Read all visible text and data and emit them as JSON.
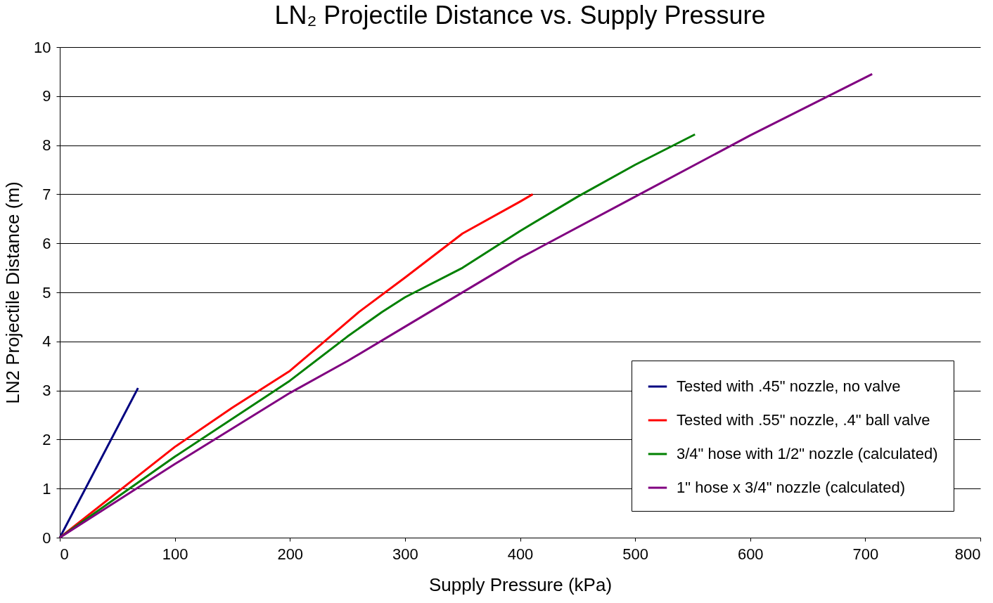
{
  "chart_data": {
    "type": "line",
    "title": "LN₂ Projectile Distance vs. Supply Pressure",
    "xlabel": "Supply Pressure (kPa)",
    "ylabel": "LN2 Projectile Distance (m)",
    "xlim": [
      0,
      800
    ],
    "xticks": [
      0,
      100,
      200,
      300,
      400,
      500,
      600,
      700,
      800
    ],
    "ylim": [
      0,
      10
    ],
    "yticks": [
      0,
      1,
      2,
      3,
      4,
      5,
      6,
      7,
      8,
      9,
      10
    ],
    "grid": "y",
    "legend": "bottom right",
    "marker": "none",
    "line_style": "solid",
    "series": [
      {
        "name": "Tested with .45\" nozzle, no valve",
        "color": "#000080",
        "x": [
          0,
          68
        ],
        "values": [
          0,
          3.05
        ]
      },
      {
        "name": "Tested with .55\" nozzle, .4\" ball valve",
        "color": "#ff0000",
        "x": [
          0,
          100,
          150,
          200,
          230,
          260,
          300,
          350,
          400,
          411
        ],
        "values": [
          0,
          1.85,
          2.65,
          3.4,
          4.0,
          4.6,
          5.3,
          6.2,
          6.85,
          7.0
        ]
      },
      {
        "name": "3/4\" hose with 1/2\" nozzle (calculated)",
        "color": "#008000",
        "x": [
          0,
          100,
          200,
          250,
          280,
          300,
          350,
          400,
          450,
          500,
          552
        ],
        "values": [
          0,
          1.65,
          3.2,
          4.1,
          4.6,
          4.9,
          5.5,
          6.25,
          6.95,
          7.6,
          8.22
        ]
      },
      {
        "name": "1\" hose x 3/4\" nozzle (calculated)",
        "color": "#800080",
        "x": [
          0,
          100,
          200,
          250,
          300,
          400,
          500,
          600,
          706
        ],
        "values": [
          0,
          1.5,
          2.95,
          3.6,
          4.3,
          5.7,
          6.95,
          8.2,
          9.45
        ]
      }
    ]
  }
}
